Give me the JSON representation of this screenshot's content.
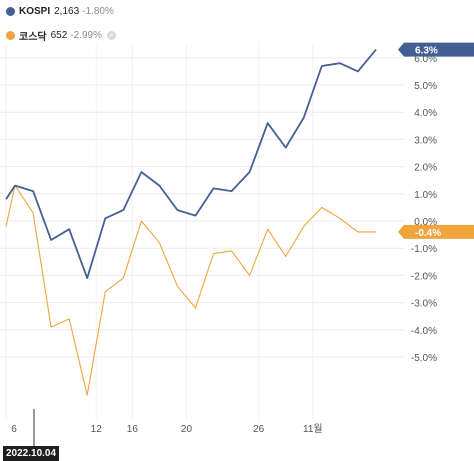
{
  "legend": [
    {
      "name": "KOSPI",
      "value": "2,163",
      "change": "-1.80%",
      "color": "#445f93"
    },
    {
      "name": "코스닥",
      "value": "652",
      "change": "-2.99%",
      "color": "#f0a43c",
      "close_icon": "close-icon"
    }
  ],
  "date_badge": "2022.10.04",
  "chart_data": {
    "type": "line",
    "x_ticks": [
      "6",
      "12",
      "16",
      "20",
      "26",
      "11월"
    ],
    "x_tick_index": [
      0,
      5,
      7,
      10,
      14,
      17
    ],
    "ylim": [
      -6.5,
      6.5
    ],
    "y_ticks": [
      "6.0%",
      "5.0%",
      "4.0%",
      "3.0%",
      "2.0%",
      "1.0%",
      "0.0%",
      "-1.0%",
      "-2.0%",
      "-3.0%",
      "-4.0%",
      "-5.0%"
    ],
    "y_tick_values": [
      6,
      5,
      4,
      3,
      2,
      1,
      0,
      -1,
      -2,
      -3,
      -4,
      -5
    ],
    "grid": true,
    "series": [
      {
        "name": "KOSPI",
        "color": "#445f93",
        "last_label": "6.3%",
        "x": [
          0,
          0.5,
          1.5,
          2.5,
          3.5,
          4.5,
          5.5,
          6.5,
          7.5,
          8.5,
          9.5,
          10.5,
          11.5,
          12.5,
          13.5,
          14.5,
          15.5,
          16.5,
          17.5,
          18.5,
          19.5,
          20.5
        ],
        "values": [
          0.8,
          1.3,
          1.1,
          -0.7,
          -0.3,
          -2.1,
          0.1,
          0.4,
          1.8,
          1.3,
          0.4,
          0.2,
          1.2,
          1.1,
          1.8,
          3.6,
          2.7,
          3.8,
          5.7,
          5.8,
          5.5,
          6.3
        ]
      },
      {
        "name": "코스닥",
        "color": "#f0a43c",
        "last_label": "-0.4%",
        "x": [
          0,
          0.5,
          1.5,
          2.5,
          3.5,
          4.5,
          5.5,
          6.5,
          7.5,
          8.5,
          9.5,
          10.5,
          11.5,
          12.5,
          13.5,
          14.5,
          15.5,
          16.5,
          17.5,
          18.5,
          19.5,
          20.5
        ],
        "values": [
          -0.2,
          1.3,
          0.3,
          -3.9,
          -3.6,
          -6.4,
          -2.6,
          -2.1,
          0.0,
          -0.8,
          -2.4,
          -3.2,
          -1.2,
          -1.1,
          -2.0,
          -0.3,
          -1.3,
          -0.2,
          0.5,
          0.1,
          -0.4,
          -0.4
        ]
      }
    ]
  }
}
